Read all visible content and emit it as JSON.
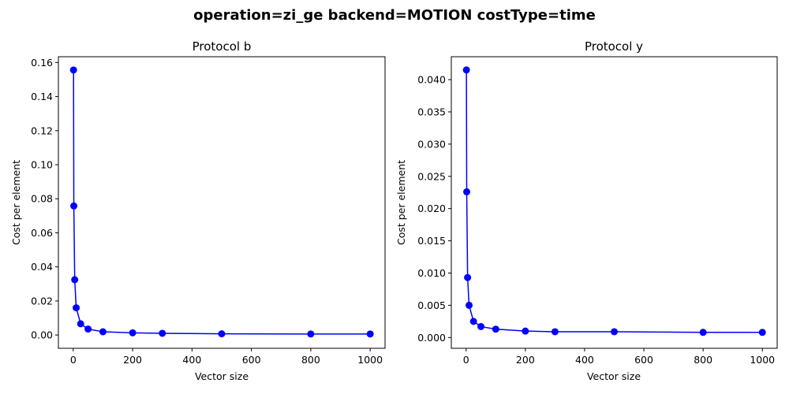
{
  "figure": {
    "suptitle": "operation=zi_ge backend=MOTION costType=time"
  },
  "style": {
    "line_color": "#0000ff",
    "marker_color": "#0000ff",
    "axes_color": "#000000"
  },
  "chart_data": [
    {
      "type": "line",
      "title": "Protocol b",
      "xlabel": "Vector size",
      "ylabel": "Cost per element",
      "xlim": [
        -50,
        1050
      ],
      "ylim": [
        -0.0078,
        0.1634
      ],
      "xticks": [
        0,
        200,
        400,
        600,
        800,
        1000
      ],
      "xtick_labels": [
        "0",
        "200",
        "400",
        "600",
        "800",
        "1000"
      ],
      "yticks": [
        0.0,
        0.02,
        0.04,
        0.06,
        0.08,
        0.1,
        0.12,
        0.14,
        0.16
      ],
      "ytick_labels": [
        "0.00",
        "0.02",
        "0.04",
        "0.06",
        "0.08",
        "0.10",
        "0.12",
        "0.14",
        "0.16"
      ],
      "grid": false,
      "marker": "circle",
      "series": [
        {
          "x": [
            1,
            2,
            5,
            10,
            25,
            50,
            100,
            200,
            300,
            500,
            800,
            1000
          ],
          "y": [
            0.1556,
            0.0758,
            0.0325,
            0.016,
            0.0066,
            0.0035,
            0.0019,
            0.0013,
            0.001,
            0.0007,
            0.0006,
            0.0006
          ]
        }
      ]
    },
    {
      "type": "line",
      "title": "Protocol y",
      "xlabel": "Vector size",
      "ylabel": "Cost per element",
      "xlim": [
        -50,
        1050
      ],
      "ylim": [
        -0.00167,
        0.04355
      ],
      "xticks": [
        0,
        200,
        400,
        600,
        800,
        1000
      ],
      "xtick_labels": [
        "0",
        "200",
        "400",
        "600",
        "800",
        "1000"
      ],
      "yticks": [
        0.0,
        0.005,
        0.01,
        0.015,
        0.02,
        0.025,
        0.03,
        0.035,
        0.04
      ],
      "ytick_labels": [
        "0.000",
        "0.005",
        "0.010",
        "0.015",
        "0.020",
        "0.025",
        "0.030",
        "0.035",
        "0.040"
      ],
      "grid": false,
      "marker": "circle",
      "series": [
        {
          "x": [
            1,
            2,
            5,
            10,
            25,
            50,
            100,
            200,
            300,
            500,
            800,
            1000
          ],
          "y": [
            0.0415,
            0.0226,
            0.0093,
            0.005,
            0.0025,
            0.0017,
            0.0013,
            0.001,
            0.0009,
            0.0009,
            0.0008,
            0.0008
          ]
        }
      ]
    }
  ]
}
